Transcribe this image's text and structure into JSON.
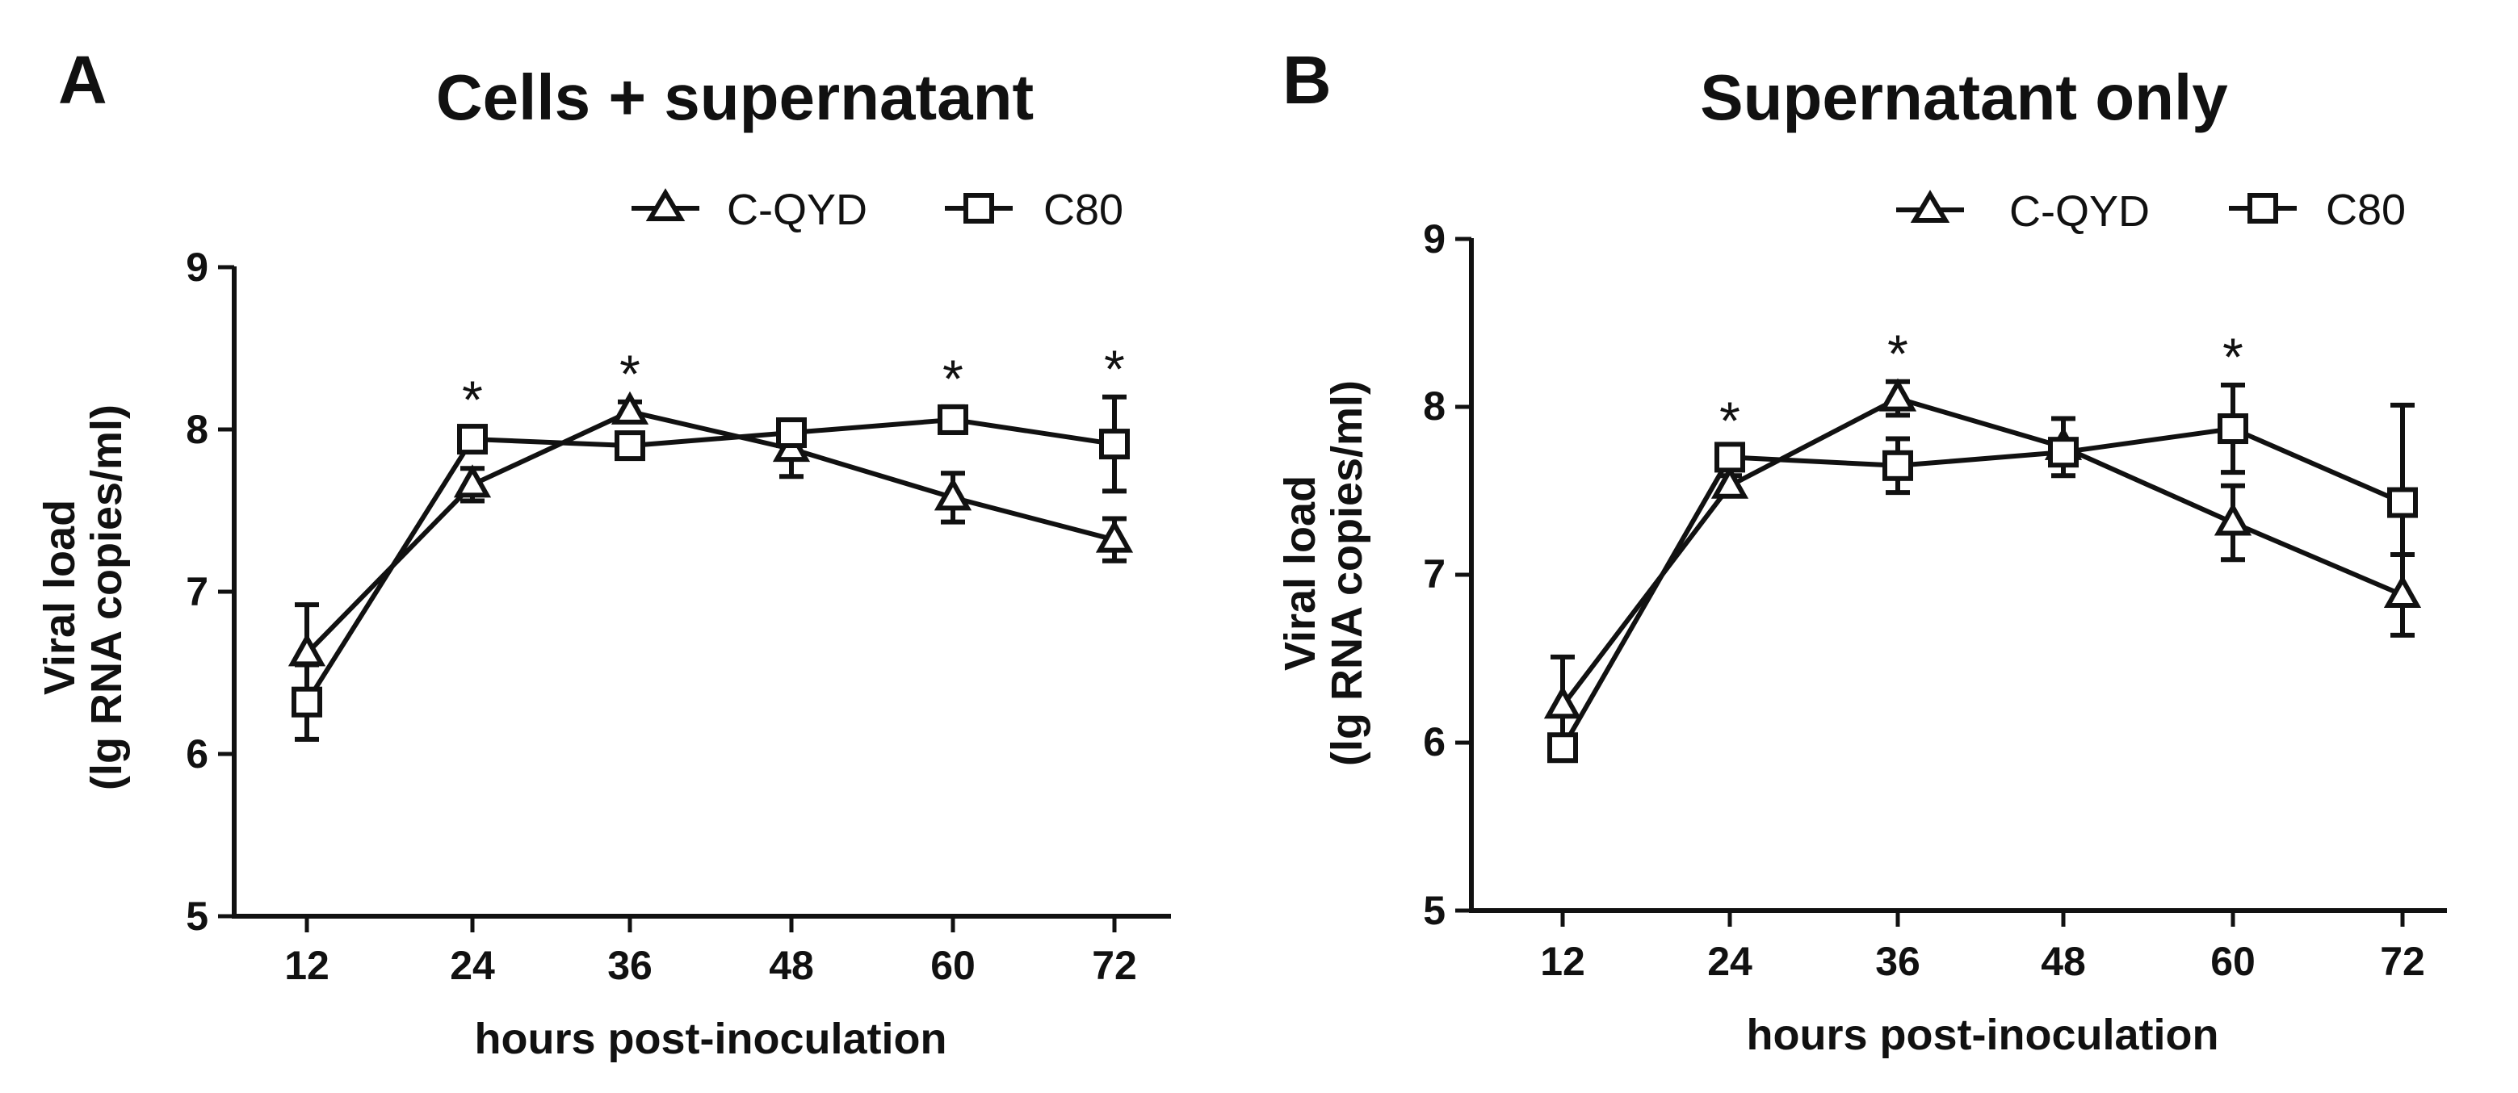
{
  "chart_data": [
    {
      "type": "line",
      "panel_label": "A",
      "title": "Cells + supernatant",
      "xlabel": "hours post-inoculation",
      "ylabel_line1": "Viral load",
      "ylabel_line2": "(lg RNA copies/ml)",
      "x": [
        "12",
        "24",
        "36",
        "48",
        "60",
        "72"
      ],
      "y_ticks": [
        "5",
        "6",
        "7",
        "8",
        "9"
      ],
      "ylim": [
        5,
        9
      ],
      "series": [
        {
          "name": "C-QYD",
          "marker": "triangle",
          "values": [
            6.62,
            7.66,
            8.11,
            7.88,
            7.58,
            7.32
          ],
          "errors": [
            0.3,
            0.1,
            0.06,
            0.17,
            0.15,
            0.13
          ]
        },
        {
          "name": "C80",
          "marker": "square",
          "values": [
            6.32,
            7.94,
            7.9,
            7.98,
            8.06,
            7.91
          ],
          "errors": [
            0.23,
            0.07,
            0.06,
            0.06,
            0.08,
            0.29
          ]
        }
      ],
      "significance": [
        {
          "x": "24",
          "label": "*"
        },
        {
          "x": "36",
          "label": "*"
        },
        {
          "x": "60",
          "label": "*"
        },
        {
          "x": "72",
          "label": "*"
        }
      ],
      "legend": [
        "C-QYD",
        "C80"
      ]
    },
    {
      "type": "line",
      "panel_label": "B",
      "title": "Supernatant only",
      "xlabel": "hours post-inoculation",
      "ylabel_line1": "Viral load",
      "ylabel_line2": "(lg RNA copies/ml)",
      "x": [
        "12",
        "24",
        "36",
        "48",
        "60",
        "72"
      ],
      "y_ticks": [
        "5",
        "6",
        "7",
        "8",
        "9"
      ],
      "ylim": [
        5,
        9
      ],
      "series": [
        {
          "name": "C-QYD",
          "marker": "triangle",
          "values": [
            6.22,
            7.53,
            8.05,
            7.76,
            7.31,
            6.88
          ],
          "errors": [
            0.29,
            0.06,
            0.1,
            0.17,
            0.22,
            0.24
          ]
        },
        {
          "name": "C80",
          "marker": "square",
          "values": [
            5.97,
            7.7,
            7.65,
            7.73,
            7.87,
            7.43
          ],
          "errors": [
            0.05,
            0.05,
            0.16,
            0.06,
            0.26,
            0.58
          ]
        }
      ],
      "significance": [
        {
          "x": "24",
          "label": "*"
        },
        {
          "x": "36",
          "label": "*"
        },
        {
          "x": "60",
          "label": "*"
        }
      ],
      "legend": [
        "C-QYD",
        "C80"
      ]
    }
  ]
}
